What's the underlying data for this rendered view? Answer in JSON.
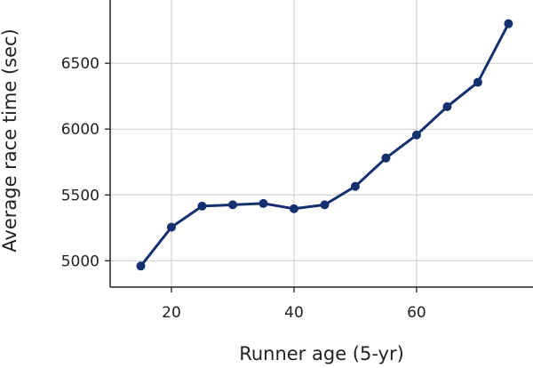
{
  "chart_data": {
    "type": "line",
    "xlabel": "Runner age (5-yr)",
    "ylabel": "Average race time (sec)",
    "xlim": [
      10,
      79
    ],
    "ylim": [
      4800,
      6980
    ],
    "x_ticks": [
      20,
      40,
      60
    ],
    "y_ticks": [
      5000,
      5500,
      6000,
      6500
    ],
    "grid": true,
    "colors": {
      "series": "#14306e"
    },
    "series": [
      {
        "x": [
          15,
          20,
          25,
          30,
          35,
          40,
          45,
          50,
          55,
          60,
          65,
          70,
          75
        ],
        "values": [
          4960,
          5255,
          5415,
          5425,
          5435,
          5395,
          5425,
          5565,
          5780,
          5955,
          6170,
          6355,
          6800
        ]
      }
    ]
  }
}
